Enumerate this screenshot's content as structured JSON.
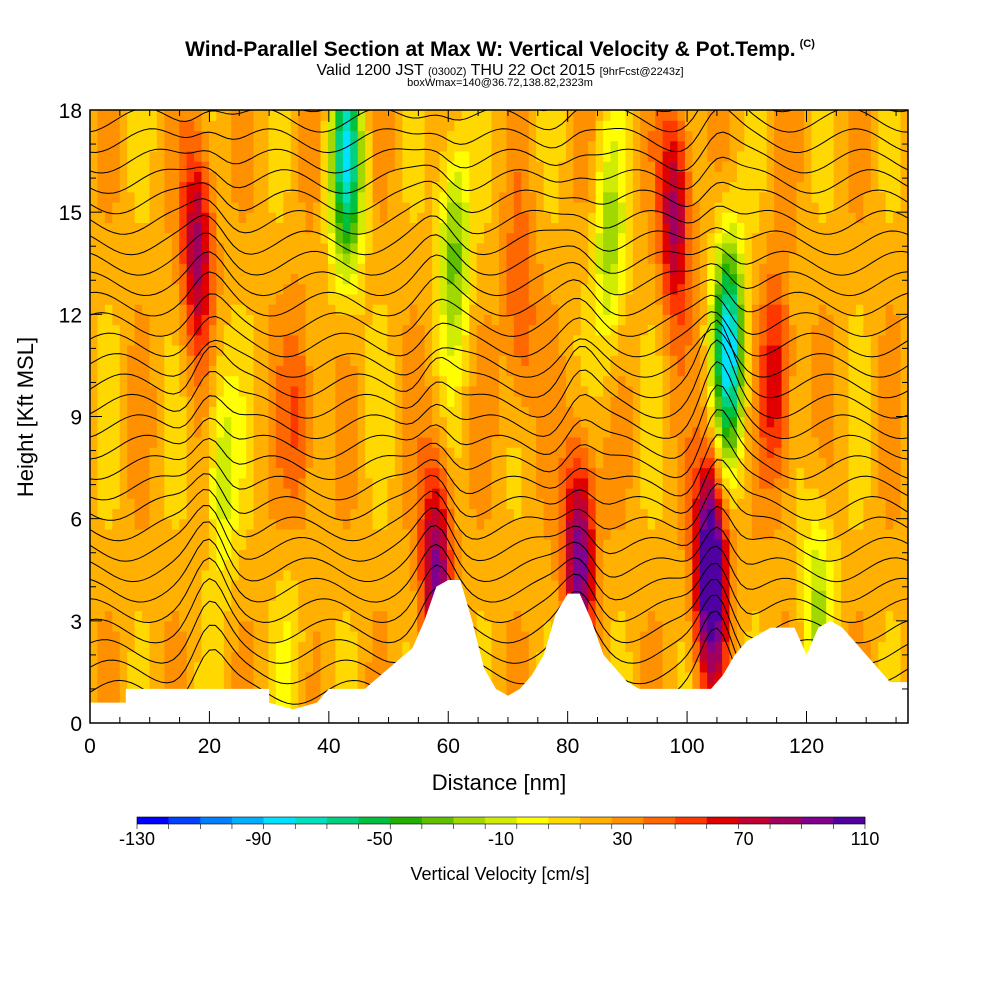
{
  "title": {
    "main": "Wind-Parallel Section at Max W: Vertical Velocity & Pot.Temp.",
    "copyright": "(C)",
    "valid_prefix": "Valid 1200 JST",
    "utc": "(0300Z)",
    "valid_date": "THU 22 Oct 2015",
    "forecast": "[9hrFcst@2243z]",
    "box": "boxWmax=140@36.72,138.82,2323m"
  },
  "colors": {
    "scale": [
      "#0000ff",
      "#0040ff",
      "#0080ff",
      "#00b0ff",
      "#00e0ff",
      "#00e0c0",
      "#00d080",
      "#00c040",
      "#20b000",
      "#60c000",
      "#a0d800",
      "#d0ec00",
      "#ffff00",
      "#ffd800",
      "#ffb000",
      "#ff9000",
      "#ff6800",
      "#ff3800",
      "#e00000",
      "#c00030",
      "#a00060",
      "#800090",
      "#5000a0"
    ]
  },
  "chart_data": {
    "type": "heatmap",
    "xlabel": "Distance [nm]",
    "ylabel": "Height [Kft MSL]",
    "xlim": [
      0,
      137
    ],
    "ylim": [
      0,
      18
    ],
    "xticks": [
      0,
      20,
      40,
      60,
      80,
      100,
      120
    ],
    "yticks": [
      0,
      3,
      6,
      9,
      12,
      15,
      18
    ],
    "colorbar": {
      "label": "Vertical Velocity [cm/s]",
      "min": -130,
      "max": 110,
      "step": 10,
      "tick_labels": [
        -130,
        -90,
        -50,
        -10,
        30,
        70,
        110
      ]
    },
    "background_w": 15,
    "updrafts": [
      {
        "x": 18,
        "y": 14,
        "w": 60
      },
      {
        "x": 58,
        "y": 4.4,
        "w": 70
      },
      {
        "x": 82,
        "y": 5.0,
        "w": 75
      },
      {
        "x": 98,
        "y": 15,
        "w": 60
      },
      {
        "x": 104,
        "y": 4.5,
        "w": 110
      },
      {
        "x": 115,
        "y": 10,
        "w": 45
      },
      {
        "x": 35,
        "y": 9,
        "w": 30
      },
      {
        "x": 72,
        "y": 12,
        "w": 30
      }
    ],
    "downdrafts": [
      {
        "x": 43,
        "y": 16.5,
        "w": -90
      },
      {
        "x": 107,
        "y": 11,
        "w": -100
      },
      {
        "x": 61,
        "y": 14,
        "w": -50
      },
      {
        "x": 87,
        "y": 14,
        "w": -40
      },
      {
        "x": 22,
        "y": 7.5,
        "w": -35
      },
      {
        "x": 122,
        "y": 3.5,
        "w": -35
      },
      {
        "x": 34,
        "y": 1.8,
        "w": -15
      }
    ],
    "terrain": [
      [
        0,
        0.6
      ],
      [
        6,
        0.6
      ],
      [
        6,
        1.0
      ],
      [
        30,
        1.0
      ],
      [
        30,
        0.6
      ],
      [
        34,
        0.4
      ],
      [
        38,
        0.6
      ],
      [
        40,
        1.0
      ],
      [
        46,
        1.0
      ],
      [
        50,
        1.6
      ],
      [
        54,
        2.2
      ],
      [
        56,
        3.0
      ],
      [
        58,
        4.0
      ],
      [
        60,
        4.2
      ],
      [
        62,
        4.2
      ],
      [
        64,
        3.0
      ],
      [
        66,
        1.6
      ],
      [
        68,
        1.0
      ],
      [
        70,
        0.8
      ],
      [
        72,
        1.0
      ],
      [
        74,
        1.4
      ],
      [
        76,
        2.0
      ],
      [
        78,
        3.2
      ],
      [
        80,
        3.8
      ],
      [
        82,
        3.8
      ],
      [
        84,
        3.0
      ],
      [
        86,
        2.0
      ],
      [
        88,
        1.6
      ],
      [
        90,
        1.2
      ],
      [
        92,
        1.0
      ],
      [
        104,
        1.0
      ],
      [
        106,
        1.4
      ],
      [
        108,
        2.0
      ],
      [
        110,
        2.4
      ],
      [
        112,
        2.6
      ],
      [
        114,
        2.8
      ],
      [
        118,
        2.8
      ],
      [
        120,
        2.0
      ],
      [
        122,
        2.8
      ],
      [
        124,
        3.0
      ],
      [
        126,
        2.8
      ],
      [
        128,
        2.4
      ],
      [
        130,
        2.0
      ],
      [
        132,
        1.6
      ],
      [
        134,
        1.2
      ],
      [
        137,
        1.2
      ]
    ]
  }
}
